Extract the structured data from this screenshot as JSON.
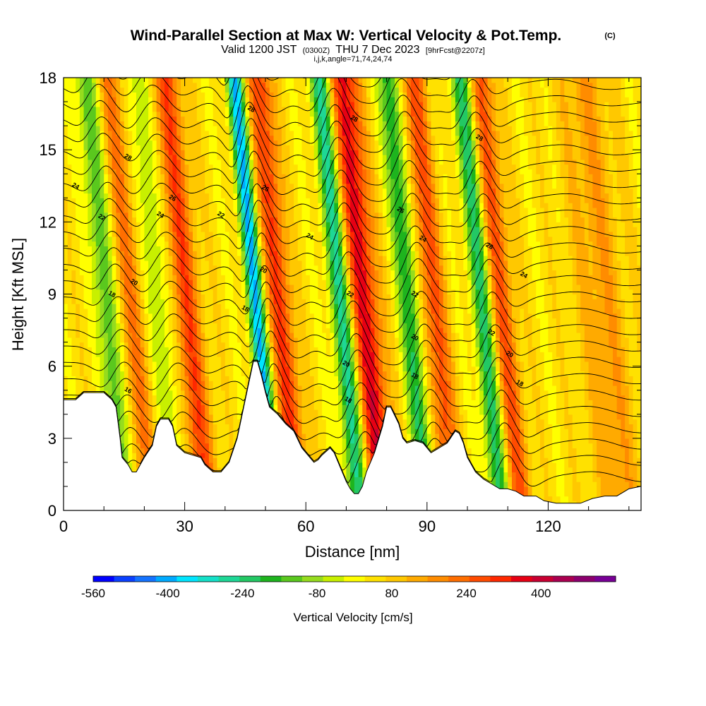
{
  "title": "Wind-Parallel Section at Max W: Vertical Velocity & Pot.Temp.",
  "copyright_mark": "(C)",
  "subtitle": {
    "valid_prefix": "Valid 1200 JST",
    "valid_utc": "(0300Z)",
    "valid_date": "THU 7 Dec 2023",
    "forecast_note": "[9hrFcst@2207z]"
  },
  "section_indices": "i,j,k,angle=71,74,24,74",
  "chart_data": {
    "type": "heatmap",
    "xlabel": "Distance [nm]",
    "ylabel": "Height [Kft MSL]",
    "xlim": [
      0,
      143
    ],
    "ylim": [
      0,
      18
    ],
    "x_ticks": [
      "0",
      "30",
      "60",
      "90",
      "120"
    ],
    "x_tick_values": [
      0,
      30,
      60,
      90,
      120
    ],
    "y_ticks": [
      "0",
      "3",
      "6",
      "9",
      "12",
      "15",
      "18"
    ],
    "y_tick_values": [
      0,
      3,
      6,
      9,
      12,
      15,
      18
    ],
    "colorbar": {
      "title": "Vertical Velocity [cm/s]",
      "tick_labels": [
        "-560",
        "-400",
        "-240",
        "-80",
        "80",
        "240",
        "400"
      ],
      "tick_values": [
        -560,
        -400,
        -240,
        -80,
        80,
        240,
        400
      ],
      "range": [
        -560,
        560
      ],
      "colors": [
        "#0000ff",
        "#0a40ff",
        "#1473ff",
        "#00aaff",
        "#00e5ff",
        "#14e0c8",
        "#1ed796",
        "#23c864",
        "#1eb41e",
        "#5ac81e",
        "#96dc1e",
        "#c8f000",
        "#ffff00",
        "#ffe100",
        "#ffc800",
        "#ffaa00",
        "#ff8c00",
        "#ff6e00",
        "#ff4b00",
        "#ff2800",
        "#e60014",
        "#c80032",
        "#aa0050",
        "#8c006e",
        "#780096"
      ]
    },
    "terrain_kft": [
      [
        0,
        4.6
      ],
      [
        3,
        4.6
      ],
      [
        5,
        4.9
      ],
      [
        10,
        4.9
      ],
      [
        12,
        4.6
      ],
      [
        13,
        4.3
      ],
      [
        14,
        3.0
      ],
      [
        14.5,
        2.2
      ],
      [
        16,
        1.9
      ],
      [
        17,
        1.6
      ],
      [
        18,
        1.6
      ],
      [
        19,
        1.9
      ],
      [
        20,
        2.2
      ],
      [
        22,
        2.7
      ],
      [
        23,
        3.5
      ],
      [
        24,
        3.8
      ],
      [
        26,
        3.8
      ],
      [
        27,
        3.5
      ],
      [
        28,
        2.7
      ],
      [
        30,
        2.4
      ],
      [
        32,
        2.3
      ],
      [
        34,
        2.2
      ],
      [
        35,
        1.9
      ],
      [
        37,
        1.6
      ],
      [
        39,
        1.6
      ],
      [
        41,
        2.0
      ],
      [
        43,
        3.0
      ],
      [
        45,
        4.6
      ],
      [
        47,
        6.2
      ],
      [
        48,
        6.2
      ],
      [
        49,
        5.6
      ],
      [
        50,
        4.9
      ],
      [
        51,
        4.3
      ],
      [
        53,
        4.0
      ],
      [
        55,
        3.6
      ],
      [
        57,
        3.3
      ],
      [
        59,
        2.6
      ],
      [
        61,
        2.2
      ],
      [
        62,
        2.0
      ],
      [
        63,
        2.1
      ],
      [
        64,
        2.3
      ],
      [
        66,
        2.6
      ],
      [
        67,
        2.4
      ],
      [
        68,
        2.0
      ],
      [
        69,
        1.6
      ],
      [
        70,
        1.2
      ],
      [
        71,
        0.9
      ],
      [
        72,
        0.7
      ],
      [
        73,
        0.7
      ],
      [
        74,
        1.0
      ],
      [
        75,
        1.6
      ],
      [
        77,
        2.4
      ],
      [
        79,
        3.5
      ],
      [
        80,
        4.3
      ],
      [
        81,
        4.3
      ],
      [
        83,
        3.6
      ],
      [
        84,
        3.0
      ],
      [
        85,
        2.8
      ],
      [
        87,
        2.9
      ],
      [
        89,
        2.8
      ],
      [
        91,
        2.4
      ],
      [
        93,
        2.6
      ],
      [
        95,
        2.8
      ],
      [
        97,
        3.3
      ],
      [
        98,
        3.2
      ],
      [
        99,
        2.8
      ],
      [
        100,
        2.2
      ],
      [
        102,
        1.6
      ],
      [
        104,
        1.3
      ],
      [
        106,
        1.1
      ],
      [
        108,
        0.9
      ],
      [
        110,
        0.9
      ],
      [
        112,
        0.8
      ],
      [
        114,
        0.6
      ],
      [
        117,
        0.6
      ],
      [
        119,
        0.4
      ],
      [
        122,
        0.3
      ],
      [
        125,
        0.3
      ],
      [
        128,
        0.3
      ],
      [
        131,
        0.5
      ],
      [
        134,
        0.6
      ],
      [
        137,
        0.6
      ],
      [
        140,
        0.9
      ],
      [
        143,
        1.0
      ]
    ],
    "updraft_bands": [
      {
        "x": 18,
        "sign": 1,
        "amp": 160,
        "width": 3.0
      },
      {
        "x": 32,
        "sign": 1,
        "amp": 230,
        "width": 3.5
      },
      {
        "x": 55,
        "sign": 1,
        "amp": 260,
        "width": 3.0
      },
      {
        "x": 76,
        "sign": 1,
        "amp": 330,
        "width": 3.5
      },
      {
        "x": 93,
        "sign": 1,
        "amp": 230,
        "width": 3.0
      },
      {
        "x": 110,
        "sign": 1,
        "amp": 220,
        "width": 3.0
      },
      {
        "x": 135,
        "sign": 1,
        "amp": 110,
        "width": 6.0
      }
    ],
    "downdraft_bands": [
      {
        "x": 12,
        "sign": -1,
        "amp": 200,
        "width": 2.5
      },
      {
        "x": 25,
        "sign": -1,
        "amp": 120,
        "width": 2.5
      },
      {
        "x": 49,
        "sign": -1,
        "amp": 420,
        "width": 2.0
      },
      {
        "x": 70,
        "sign": -1,
        "amp": 300,
        "width": 2.5
      },
      {
        "x": 87,
        "sign": -1,
        "amp": 250,
        "width": 2.5
      },
      {
        "x": 105,
        "sign": -1,
        "amp": 260,
        "width": 2.5
      }
    ],
    "contour_labels": [
      {
        "text": "28",
        "x": 16,
        "y": 14.7
      },
      {
        "text": "26",
        "x": 27,
        "y": 13.0
      },
      {
        "text": "24",
        "x": 3,
        "y": 13.5
      },
      {
        "text": "24",
        "x": 24,
        "y": 12.3
      },
      {
        "text": "22",
        "x": 9.5,
        "y": 12.2
      },
      {
        "text": "22",
        "x": 39,
        "y": 12.3
      },
      {
        "text": "20",
        "x": 17.5,
        "y": 9.5
      },
      {
        "text": "18",
        "x": 12,
        "y": 9.0
      },
      {
        "text": "16",
        "x": 16,
        "y": 5.0
      },
      {
        "text": "28",
        "x": 46.5,
        "y": 16.7
      },
      {
        "text": "26",
        "x": 50,
        "y": 13.4
      },
      {
        "text": "20",
        "x": 49.5,
        "y": 10.0
      },
      {
        "text": "18",
        "x": 45,
        "y": 8.4
      },
      {
        "text": "24",
        "x": 61,
        "y": 11.4
      },
      {
        "text": "28",
        "x": 72,
        "y": 16.3
      },
      {
        "text": "22",
        "x": 71,
        "y": 9.0
      },
      {
        "text": "20",
        "x": 70,
        "y": 6.1
      },
      {
        "text": "18",
        "x": 70.5,
        "y": 4.6
      },
      {
        "text": "26",
        "x": 83.5,
        "y": 12.5
      },
      {
        "text": "24",
        "x": 89,
        "y": 11.3
      },
      {
        "text": "22",
        "x": 87,
        "y": 9.0
      },
      {
        "text": "20",
        "x": 87,
        "y": 7.2
      },
      {
        "text": "18",
        "x": 87,
        "y": 5.6
      },
      {
        "text": "28",
        "x": 103,
        "y": 15.5
      },
      {
        "text": "26",
        "x": 105.5,
        "y": 11.0
      },
      {
        "text": "24",
        "x": 114,
        "y": 9.8
      },
      {
        "text": "22",
        "x": 106,
        "y": 7.4
      },
      {
        "text": "20",
        "x": 110.5,
        "y": 6.5
      },
      {
        "text": "18",
        "x": 113,
        "y": 5.3
      }
    ]
  }
}
